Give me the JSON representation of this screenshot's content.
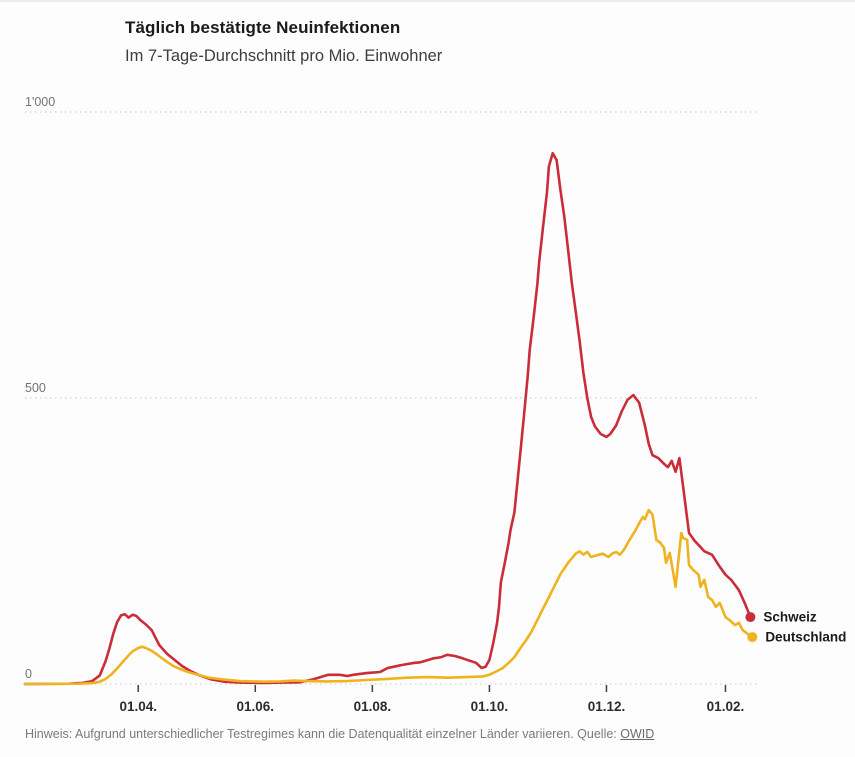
{
  "header": {
    "title": "Täglich bestätigte Neuinfektionen",
    "subtitle": "Im 7-Tage-Durchschnitt pro Mio. Einwohner"
  },
  "footer": {
    "note": "Hinweis: Aufgrund unterschiedlicher Testregimes kann die Datenqualität einzelner Länder variieren. Quelle: ",
    "source_label": "OWID"
  },
  "chart_data": {
    "type": "line",
    "title": "Täglich bestätigte Neuinfektionen",
    "subtitle": "Im 7-Tage-Durchschnitt pro Mio. Einwohner",
    "grid": "horizontal-dotted",
    "legend_position": "end-of-line",
    "x_axis": {
      "type": "date",
      "domain": [
        "2020-02-02",
        "2021-02-19"
      ],
      "ticks": [
        {
          "date": "2020-04-01",
          "label": "01.04."
        },
        {
          "date": "2020-06-01",
          "label": "01.06."
        },
        {
          "date": "2020-08-01",
          "label": "01.08."
        },
        {
          "date": "2020-10-01",
          "label": "01.10."
        },
        {
          "date": "2020-12-01",
          "label": "01.12."
        },
        {
          "date": "2021-02-01",
          "label": "01.02."
        }
      ]
    },
    "y_axis": {
      "domain": [
        0,
        1000
      ],
      "ticks": [
        {
          "value": 0,
          "label": "0"
        },
        {
          "value": 500,
          "label": "500"
        },
        {
          "value": 1000,
          "label": "1'000"
        }
      ]
    },
    "series": [
      {
        "name": "Schweiz",
        "color": "#c92d39",
        "points": [
          [
            "2020-02-02",
            0
          ],
          [
            "2020-02-25",
            0.5
          ],
          [
            "2020-03-03",
            2
          ],
          [
            "2020-03-08",
            5
          ],
          [
            "2020-03-12",
            15
          ],
          [
            "2020-03-15",
            40
          ],
          [
            "2020-03-17",
            62
          ],
          [
            "2020-03-19",
            88
          ],
          [
            "2020-03-21",
            108
          ],
          [
            "2020-03-23",
            120
          ],
          [
            "2020-03-25",
            122
          ],
          [
            "2020-03-27",
            116
          ],
          [
            "2020-03-29",
            121
          ],
          [
            "2020-03-31",
            119
          ],
          [
            "2020-04-02",
            112
          ],
          [
            "2020-04-05",
            104
          ],
          [
            "2020-04-08",
            94
          ],
          [
            "2020-04-12",
            68
          ],
          [
            "2020-04-16",
            53
          ],
          [
            "2020-04-20",
            42
          ],
          [
            "2020-04-24",
            31
          ],
          [
            "2020-04-28",
            23
          ],
          [
            "2020-05-03",
            15
          ],
          [
            "2020-05-09",
            8
          ],
          [
            "2020-05-16",
            4
          ],
          [
            "2020-05-24",
            2.5
          ],
          [
            "2020-06-05",
            2
          ],
          [
            "2020-06-15",
            2.5
          ],
          [
            "2020-06-24",
            3
          ],
          [
            "2020-07-01",
            8
          ],
          [
            "2020-07-05",
            12
          ],
          [
            "2020-07-09",
            16
          ],
          [
            "2020-07-15",
            16
          ],
          [
            "2020-07-19",
            14
          ],
          [
            "2020-07-22",
            16
          ],
          [
            "2020-07-29",
            19
          ],
          [
            "2020-08-05",
            21
          ],
          [
            "2020-08-09",
            28
          ],
          [
            "2020-08-12",
            30
          ],
          [
            "2020-08-16",
            33
          ],
          [
            "2020-08-23",
            37
          ],
          [
            "2020-08-26",
            38
          ],
          [
            "2020-08-30",
            42
          ],
          [
            "2020-09-02",
            45
          ],
          [
            "2020-09-06",
            47
          ],
          [
            "2020-09-09",
            51
          ],
          [
            "2020-09-13",
            49
          ],
          [
            "2020-09-17",
            45
          ],
          [
            "2020-09-24",
            37
          ],
          [
            "2020-09-27",
            28
          ],
          [
            "2020-09-29",
            30
          ],
          [
            "2020-10-01",
            42
          ],
          [
            "2020-10-03",
            72
          ],
          [
            "2020-10-05",
            107
          ],
          [
            "2020-10-06",
            135
          ],
          [
            "2020-10-07",
            178
          ],
          [
            "2020-10-09",
            212
          ],
          [
            "2020-10-11",
            247
          ],
          [
            "2020-10-12",
            269
          ],
          [
            "2020-10-14",
            300
          ],
          [
            "2020-10-17",
            400
          ],
          [
            "2020-10-19",
            470
          ],
          [
            "2020-10-21",
            540
          ],
          [
            "2020-10-22",
            584
          ],
          [
            "2020-10-24",
            640
          ],
          [
            "2020-10-26",
            700
          ],
          [
            "2020-10-27",
            740
          ],
          [
            "2020-10-29",
            800
          ],
          [
            "2020-10-31",
            860
          ],
          [
            "2020-11-01",
            905
          ],
          [
            "2020-11-03",
            928
          ],
          [
            "2020-11-05",
            916
          ],
          [
            "2020-11-07",
            864
          ],
          [
            "2020-11-09",
            817
          ],
          [
            "2020-11-11",
            759
          ],
          [
            "2020-11-13",
            700
          ],
          [
            "2020-11-15",
            650
          ],
          [
            "2020-11-17",
            600
          ],
          [
            "2020-11-19",
            544
          ],
          [
            "2020-11-21",
            500
          ],
          [
            "2020-11-23",
            467
          ],
          [
            "2020-11-25",
            450
          ],
          [
            "2020-11-28",
            437
          ],
          [
            "2020-12-01",
            432
          ],
          [
            "2020-12-03",
            437
          ],
          [
            "2020-12-06",
            452
          ],
          [
            "2020-12-09",
            477
          ],
          [
            "2020-12-12",
            497
          ],
          [
            "2020-12-15",
            505
          ],
          [
            "2020-12-18",
            492
          ],
          [
            "2020-12-21",
            452
          ],
          [
            "2020-12-23",
            420
          ],
          [
            "2020-12-25",
            400
          ],
          [
            "2020-12-28",
            395
          ],
          [
            "2020-12-31",
            385
          ],
          [
            "2021-01-02",
            379
          ],
          [
            "2021-01-04",
            390
          ],
          [
            "2021-01-06",
            371
          ],
          [
            "2021-01-08",
            395
          ],
          [
            "2021-01-10",
            344
          ],
          [
            "2021-01-13",
            264
          ],
          [
            "2021-01-16",
            250
          ],
          [
            "2021-01-18",
            243
          ],
          [
            "2021-01-21",
            232
          ],
          [
            "2021-01-25",
            226
          ],
          [
            "2021-01-29",
            205
          ],
          [
            "2021-02-01",
            191
          ],
          [
            "2021-02-04",
            182
          ],
          [
            "2021-02-08",
            164
          ],
          [
            "2021-02-11",
            142
          ],
          [
            "2021-02-14",
            117
          ]
        ]
      },
      {
        "name": "Deutschland",
        "color": "#efb320",
        "points": [
          [
            "2020-02-02",
            0
          ],
          [
            "2020-03-01",
            0.5
          ],
          [
            "2020-03-08",
            1.5
          ],
          [
            "2020-03-12",
            4
          ],
          [
            "2020-03-15",
            9
          ],
          [
            "2020-03-18",
            17
          ],
          [
            "2020-03-21",
            27
          ],
          [
            "2020-03-24",
            39
          ],
          [
            "2020-03-27",
            50
          ],
          [
            "2020-03-29",
            57
          ],
          [
            "2020-04-01",
            63
          ],
          [
            "2020-04-03",
            65
          ],
          [
            "2020-04-05",
            63
          ],
          [
            "2020-04-08",
            58
          ],
          [
            "2020-04-11",
            51
          ],
          [
            "2020-04-15",
            41
          ],
          [
            "2020-04-19",
            32
          ],
          [
            "2020-04-23",
            26
          ],
          [
            "2020-04-27",
            21
          ],
          [
            "2020-05-02",
            16
          ],
          [
            "2020-05-08",
            11
          ],
          [
            "2020-05-15",
            8
          ],
          [
            "2020-05-24",
            5
          ],
          [
            "2020-06-05",
            4
          ],
          [
            "2020-06-14",
            4.5
          ],
          [
            "2020-06-21",
            6
          ],
          [
            "2020-06-28",
            5
          ],
          [
            "2020-07-08",
            4.5
          ],
          [
            "2020-07-19",
            5
          ],
          [
            "2020-07-29",
            7
          ],
          [
            "2020-08-09",
            9
          ],
          [
            "2020-08-19",
            11
          ],
          [
            "2020-08-30",
            12
          ],
          [
            "2020-09-09",
            11
          ],
          [
            "2020-09-19",
            12
          ],
          [
            "2020-09-27",
            13
          ],
          [
            "2020-10-01",
            16
          ],
          [
            "2020-10-04",
            21
          ],
          [
            "2020-10-08",
            28
          ],
          [
            "2020-10-11",
            37
          ],
          [
            "2020-10-14",
            47
          ],
          [
            "2020-10-17",
            62
          ],
          [
            "2020-10-20",
            76
          ],
          [
            "2020-10-23",
            92
          ],
          [
            "2020-10-26",
            112
          ],
          [
            "2020-10-29",
            132
          ],
          [
            "2020-11-01",
            152
          ],
          [
            "2020-11-04",
            172
          ],
          [
            "2020-11-07",
            192
          ],
          [
            "2020-11-09",
            202
          ],
          [
            "2020-11-11",
            212
          ],
          [
            "2020-11-13",
            220
          ],
          [
            "2020-11-15",
            228
          ],
          [
            "2020-11-17",
            232
          ],
          [
            "2020-11-19",
            226
          ],
          [
            "2020-11-21",
            231
          ],
          [
            "2020-11-23",
            222
          ],
          [
            "2020-11-26",
            225
          ],
          [
            "2020-11-29",
            228
          ],
          [
            "2020-12-02",
            222
          ],
          [
            "2020-12-04",
            228
          ],
          [
            "2020-12-06",
            231
          ],
          [
            "2020-12-08",
            226
          ],
          [
            "2020-12-10",
            234
          ],
          [
            "2020-12-13",
            252
          ],
          [
            "2020-12-16",
            268
          ],
          [
            "2020-12-18",
            281
          ],
          [
            "2020-12-20",
            292
          ],
          [
            "2020-12-21",
            288
          ],
          [
            "2020-12-23",
            304
          ],
          [
            "2020-12-25",
            296
          ],
          [
            "2020-12-27",
            252
          ],
          [
            "2020-12-29",
            247
          ],
          [
            "2020-12-31",
            238
          ],
          [
            "2021-01-01",
            212
          ],
          [
            "2021-01-03",
            229
          ],
          [
            "2021-01-06",
            170
          ],
          [
            "2021-01-09",
            264
          ],
          [
            "2021-01-10",
            255
          ],
          [
            "2021-01-12",
            252
          ],
          [
            "2021-01-13",
            208
          ],
          [
            "2021-01-15",
            200
          ],
          [
            "2021-01-18",
            191
          ],
          [
            "2021-01-19",
            170
          ],
          [
            "2021-01-21",
            182
          ],
          [
            "2021-01-23",
            152
          ],
          [
            "2021-01-25",
            147
          ],
          [
            "2021-01-27",
            135
          ],
          [
            "2021-01-29",
            142
          ],
          [
            "2021-02-01",
            117
          ],
          [
            "2021-02-03",
            112
          ],
          [
            "2021-02-06",
            103
          ],
          [
            "2021-02-08",
            107
          ],
          [
            "2021-02-10",
            94
          ],
          [
            "2021-02-12",
            89
          ],
          [
            "2021-02-15",
            82
          ]
        ]
      }
    ]
  }
}
